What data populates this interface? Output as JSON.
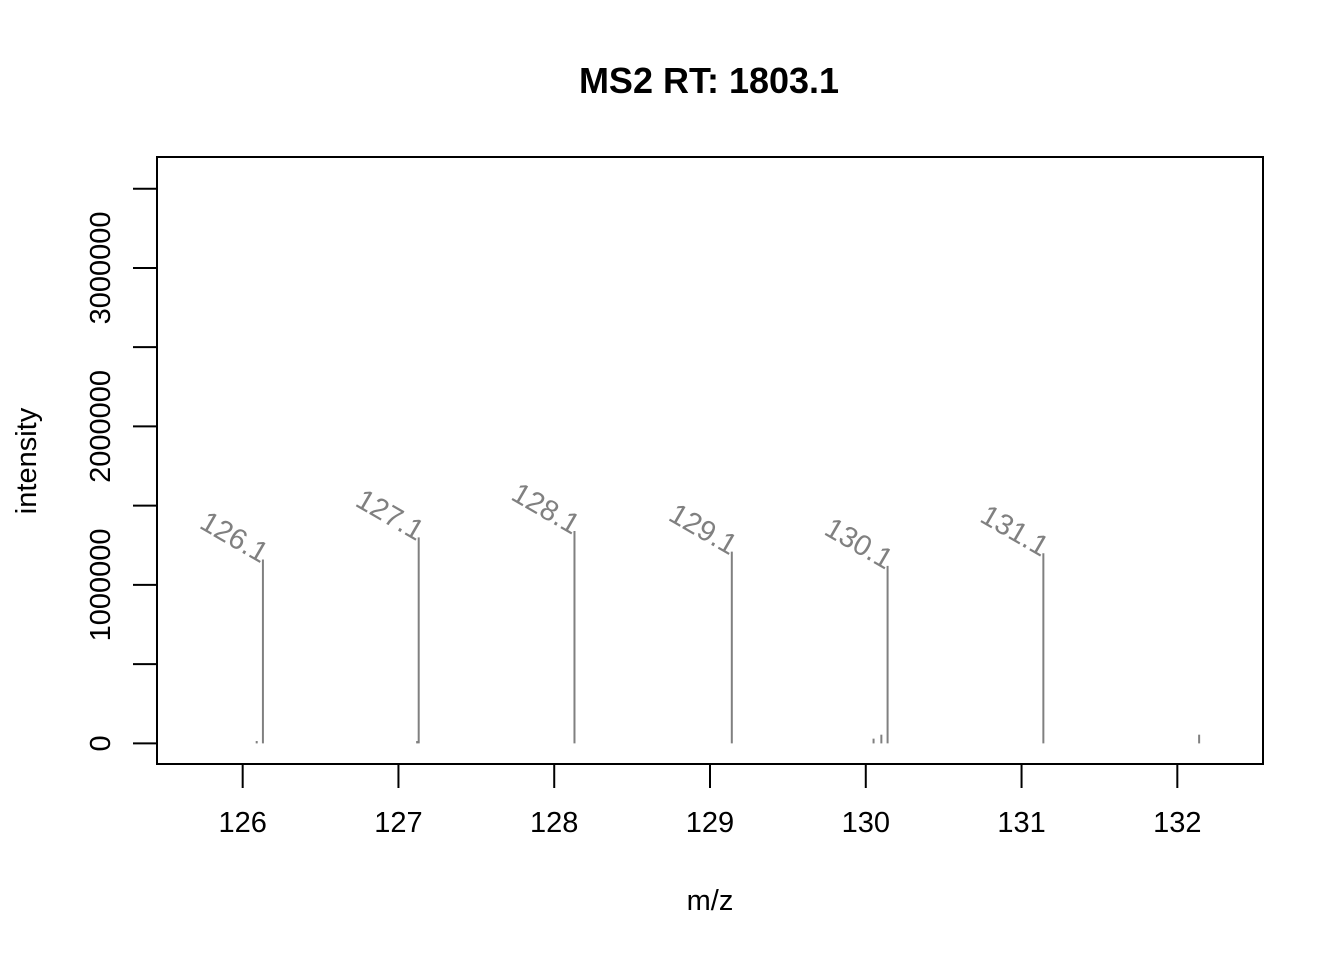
{
  "chart_data": {
    "type": "spectrum",
    "title": "MS2 RT: 1803.1",
    "xlabel": "m/z",
    "ylabel": "intensity",
    "xlim": [
      125.45,
      132.55
    ],
    "ylim": [
      -130000,
      3700000
    ],
    "x_ticks": [
      126,
      127,
      128,
      129,
      130,
      131,
      132
    ],
    "y_ticks": [
      0,
      500000,
      1000000,
      1500000,
      2000000,
      2500000,
      3000000,
      3500000
    ],
    "y_tick_labels": [
      {
        "value": 0,
        "label": "0"
      },
      {
        "value": 1000000,
        "label": "1000000"
      },
      {
        "value": 2000000,
        "label": "2000000"
      },
      {
        "value": 3000000,
        "label": "3000000"
      }
    ],
    "grid": false,
    "peaks": [
      {
        "mz": 126.09,
        "intensity": 15000
      },
      {
        "mz": 126.13,
        "intensity": 1160000
      },
      {
        "mz": 127.12,
        "intensity": 15000
      },
      {
        "mz": 127.13,
        "intensity": 1300000
      },
      {
        "mz": 128.13,
        "intensity": 1340000
      },
      {
        "mz": 129.14,
        "intensity": 1210000
      },
      {
        "mz": 130.05,
        "intensity": 30000
      },
      {
        "mz": 130.1,
        "intensity": 55000
      },
      {
        "mz": 130.14,
        "intensity": 1120000
      },
      {
        "mz": 131.14,
        "intensity": 1200000
      },
      {
        "mz": 132.14,
        "intensity": 55000
      }
    ],
    "peak_labels": [
      {
        "mz": 126.13,
        "intensity": 1160000,
        "text": "126.1"
      },
      {
        "mz": 127.13,
        "intensity": 1300000,
        "text": "127.1"
      },
      {
        "mz": 128.13,
        "intensity": 1340000,
        "text": "128.1"
      },
      {
        "mz": 129.14,
        "intensity": 1210000,
        "text": "129.1"
      },
      {
        "mz": 130.14,
        "intensity": 1120000,
        "text": "130.1"
      },
      {
        "mz": 131.14,
        "intensity": 1200000,
        "text": "131.1"
      }
    ],
    "colors": {
      "peak": "#808080",
      "peak_label": "#808080",
      "axis": "#000000"
    }
  }
}
